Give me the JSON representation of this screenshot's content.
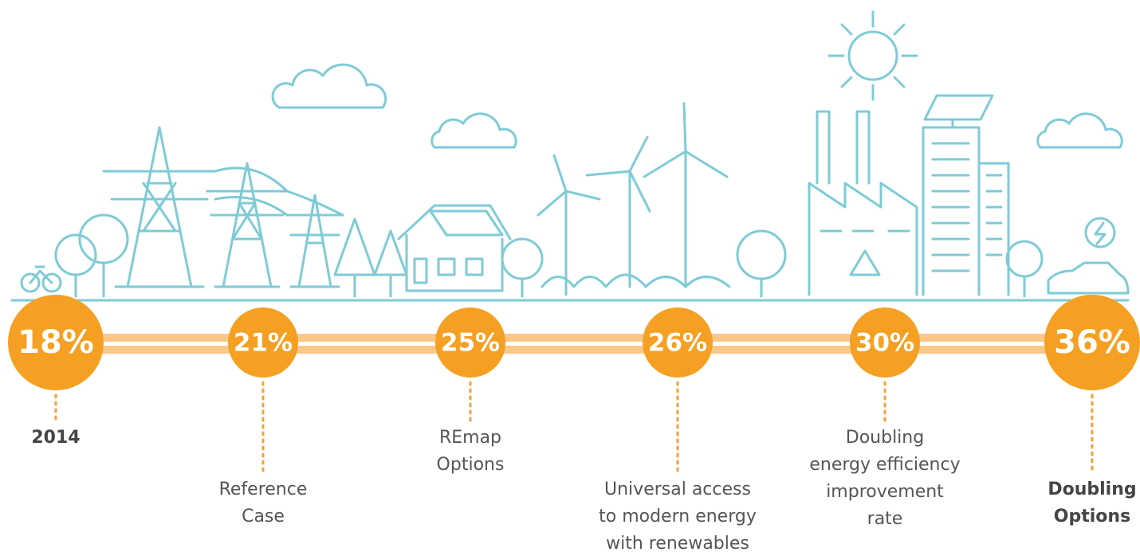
{
  "milestones": [
    {
      "value": "18%",
      "caption": [
        "2014"
      ]
    },
    {
      "value": "21%",
      "caption": [
        "Reference",
        "Case"
      ]
    },
    {
      "value": "25%",
      "caption": [
        "REmap",
        "Options"
      ]
    },
    {
      "value": "26%",
      "caption": [
        "Universal access",
        "to modern energy",
        "with renewables"
      ]
    },
    {
      "value": "30%",
      "caption": [
        "Doubling",
        "energy efficiency",
        "improvement",
        "rate"
      ]
    },
    {
      "value": "36%",
      "caption": [
        "Doubling",
        "Options"
      ]
    }
  ]
}
